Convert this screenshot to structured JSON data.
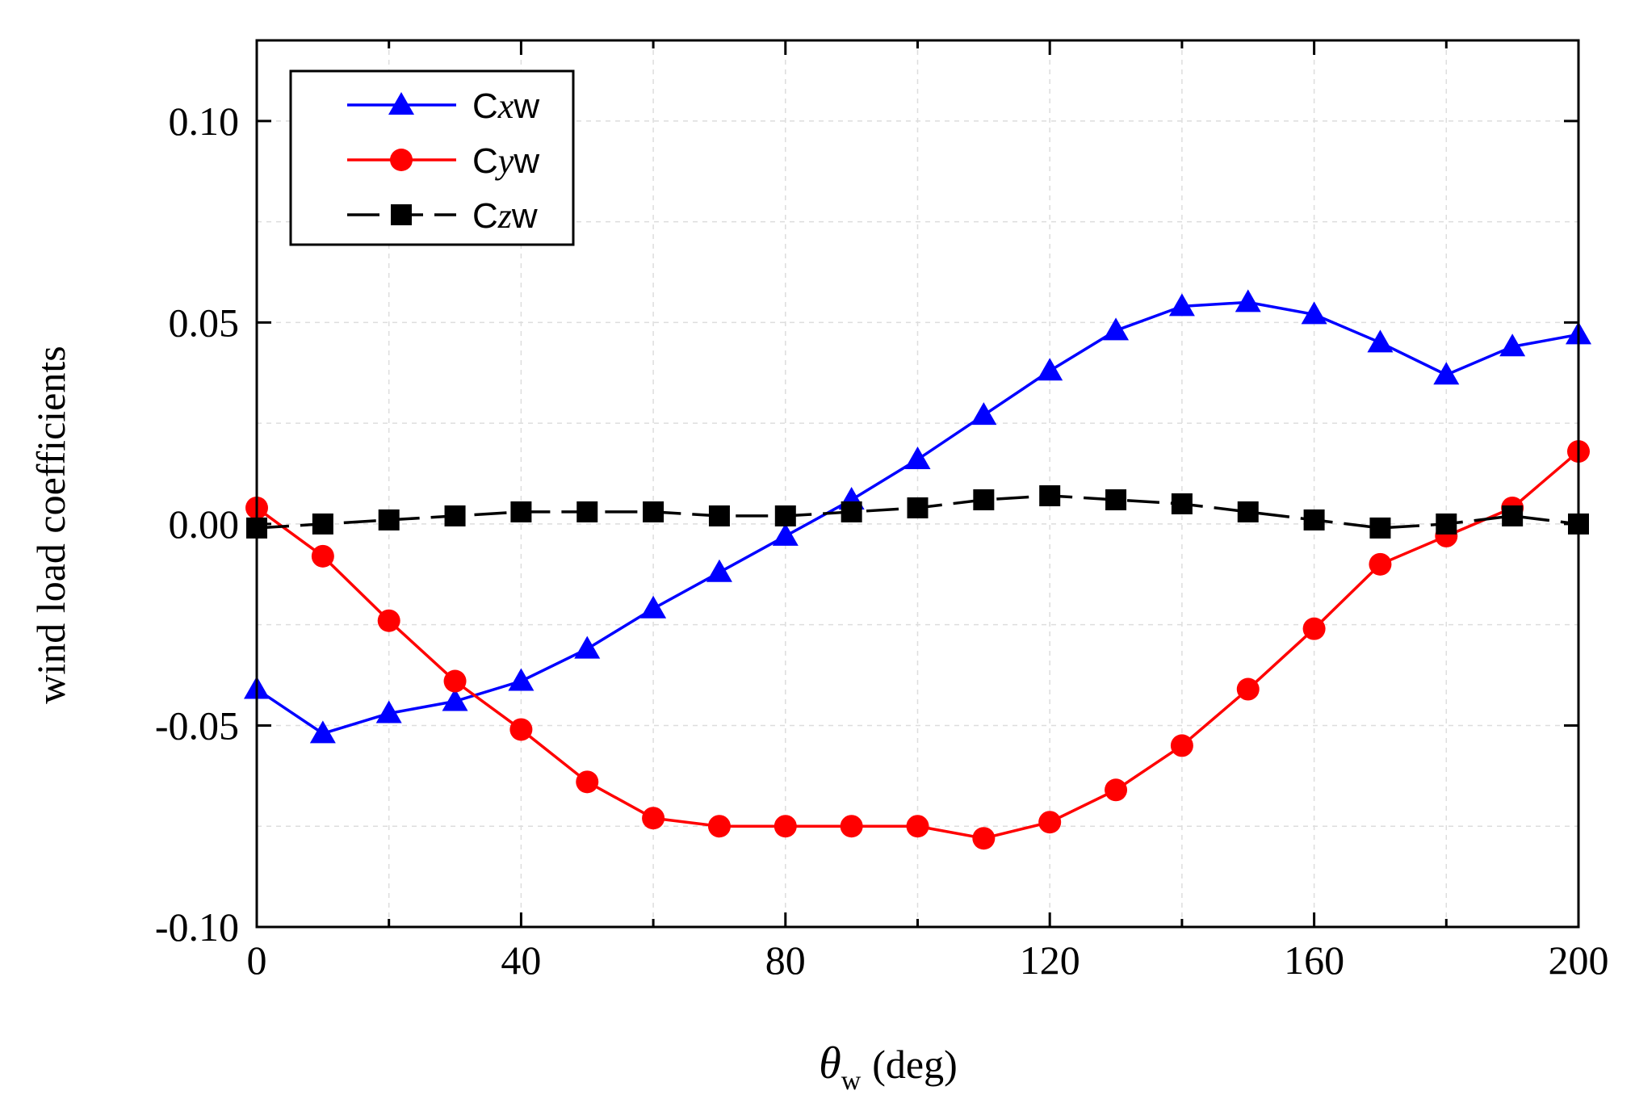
{
  "chart_data": {
    "type": "line",
    "xlabel": {
      "symbol": "θ",
      "subscript": "w",
      "unit": "(deg)"
    },
    "ylabel": "wind load coefficients",
    "xlim": [
      0,
      200
    ],
    "ylim": [
      -0.1,
      0.12
    ],
    "xticks": [
      0,
      40,
      80,
      120,
      160,
      200
    ],
    "xtick_labels": [
      "0",
      "40",
      "80",
      "120",
      "160",
      "200"
    ],
    "yticks": [
      -0.1,
      -0.05,
      0.0,
      0.05,
      0.1
    ],
    "ytick_labels": [
      "-0.10",
      "-0.05",
      "0.00",
      "0.05",
      "0.10"
    ],
    "grid": true,
    "legend_position": "top-left",
    "x": [
      0,
      10,
      20,
      30,
      40,
      50,
      60,
      70,
      80,
      90,
      100,
      110,
      120,
      130,
      140,
      150,
      160,
      170,
      180,
      190,
      200
    ],
    "series": [
      {
        "name": "Cxw",
        "name_parts": [
          "C",
          "x",
          "w"
        ],
        "color": "#0000ff",
        "marker": "triangle",
        "dash": "solid",
        "values": [
          -0.041,
          -0.052,
          -0.047,
          -0.044,
          -0.039,
          -0.031,
          -0.021,
          -0.012,
          -0.003,
          0.006,
          0.016,
          0.027,
          0.038,
          0.048,
          0.054,
          0.055,
          0.052,
          0.045,
          0.037,
          0.044,
          0.047
        ]
      },
      {
        "name": "Cyw",
        "name_parts": [
          "C",
          "y",
          "w"
        ],
        "color": "#ff0000",
        "marker": "circle",
        "dash": "solid",
        "values": [
          0.004,
          -0.008,
          -0.024,
          -0.039,
          -0.051,
          -0.064,
          -0.073,
          -0.075,
          -0.075,
          -0.075,
          -0.075,
          -0.078,
          -0.074,
          -0.066,
          -0.055,
          -0.041,
          -0.026,
          -0.01,
          -0.003,
          0.004,
          0.018
        ]
      },
      {
        "name": "Czw",
        "name_parts": [
          "C",
          "z",
          "w"
        ],
        "color": "#000000",
        "marker": "square",
        "dash": "dashed",
        "values": [
          -0.001,
          0.0,
          0.001,
          0.002,
          0.003,
          0.003,
          0.003,
          0.002,
          0.002,
          0.003,
          0.004,
          0.006,
          0.007,
          0.006,
          0.005,
          0.003,
          0.001,
          -0.001,
          0.0,
          0.002,
          0.0
        ]
      }
    ]
  }
}
